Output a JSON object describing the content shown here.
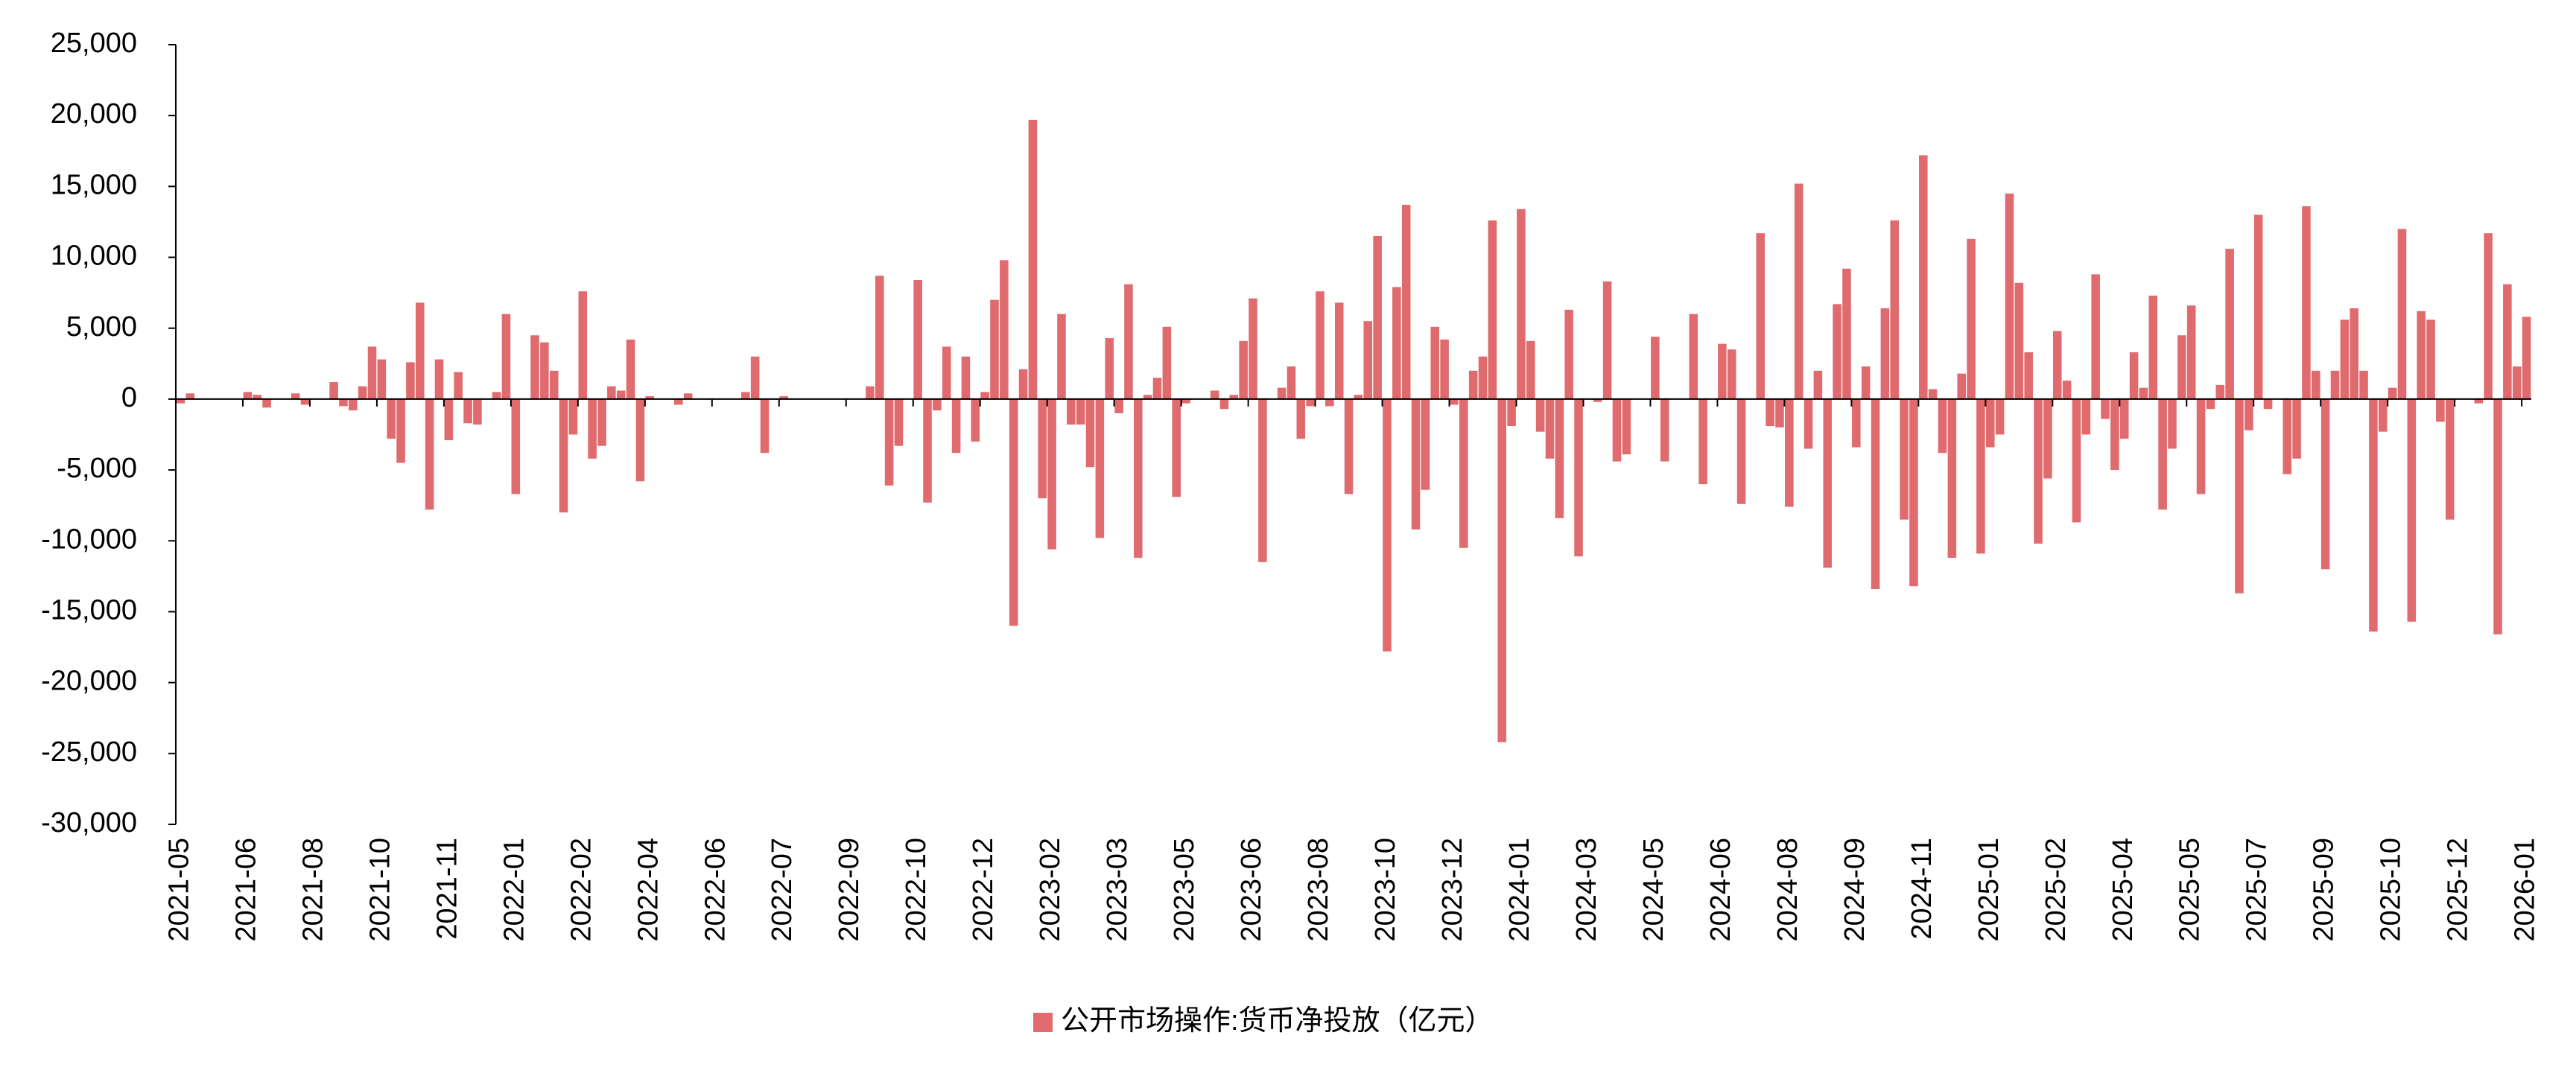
{
  "chart_data": {
    "type": "bar",
    "categories": [
      "2021-05",
      null,
      null,
      null,
      null,
      null,
      null,
      "2021-06",
      null,
      null,
      null,
      null,
      null,
      null,
      "2021-08",
      null,
      null,
      null,
      null,
      null,
      null,
      "2021-10",
      null,
      null,
      null,
      null,
      null,
      null,
      "2021-11",
      null,
      null,
      null,
      null,
      null,
      null,
      "2022-01",
      null,
      null,
      null,
      null,
      null,
      null,
      "2022-02",
      null,
      null,
      null,
      null,
      null,
      null,
      "2022-04",
      null,
      null,
      null,
      null,
      null,
      null,
      "2022-06",
      null,
      null,
      null,
      null,
      null,
      null,
      "2022-07",
      null,
      null,
      null,
      null,
      null,
      null,
      "2022-09",
      null,
      null,
      null,
      null,
      null,
      null,
      "2022-10",
      null,
      null,
      null,
      null,
      null,
      null,
      "2022-12",
      null,
      null,
      null,
      null,
      null,
      null,
      "2023-02",
      null,
      null,
      null,
      null,
      null,
      null,
      "2023-03",
      null,
      null,
      null,
      null,
      null,
      null,
      "2023-05",
      null,
      null,
      null,
      null,
      null,
      null,
      "2023-06",
      null,
      null,
      null,
      null,
      null,
      null,
      "2023-08",
      null,
      null,
      null,
      null,
      null,
      null,
      "2023-10",
      null,
      null,
      null,
      null,
      null,
      null,
      "2023-12",
      null,
      null,
      null,
      null,
      null,
      null,
      "2024-01",
      null,
      null,
      null,
      null,
      null,
      null,
      "2024-03",
      null,
      null,
      null,
      null,
      null,
      null,
      "2024-05",
      null,
      null,
      null,
      null,
      null,
      null,
      "2024-06",
      null,
      null,
      null,
      null,
      null,
      null,
      "2024-08",
      null,
      null,
      null,
      null,
      null,
      null,
      "2024-09",
      null,
      null,
      null,
      null,
      null,
      null,
      "2024-11",
      null,
      null,
      null,
      null,
      null,
      null,
      "2025-01",
      null,
      null,
      null,
      null,
      null,
      null,
      "2025-02",
      null,
      null,
      null,
      null,
      null,
      null,
      "2025-04",
      null,
      null,
      null,
      null,
      null,
      null,
      "2025-05",
      null,
      null,
      null,
      null,
      null,
      null,
      "2025-07",
      null,
      null,
      null,
      null,
      null,
      null,
      "2025-09",
      null,
      null,
      null,
      null,
      null,
      null,
      "2025-10",
      null,
      null,
      null,
      null,
      null,
      null,
      "2025-12",
      null,
      null,
      null,
      null,
      null,
      null,
      "2026-01"
    ],
    "series": [
      {
        "name": "公开市场操作:货币净投放（亿元）",
        "color": "#e06b6e",
        "values": [
          -300,
          400,
          null,
          null,
          null,
          null,
          null,
          500,
          300,
          -600,
          null,
          null,
          400,
          -400,
          null,
          null,
          1200,
          -500,
          -800,
          900,
          3700,
          2800,
          -2800,
          -4500,
          2600,
          6800,
          -7800,
          2800,
          -2900,
          1900,
          -1700,
          -1800,
          null,
          500,
          6000,
          -6700,
          null,
          4500,
          4000,
          2000,
          -8000,
          -2500,
          7600,
          -4200,
          -3300,
          900,
          600,
          4200,
          -5800,
          200,
          null,
          null,
          -400,
          400,
          null,
          null,
          null,
          null,
          null,
          500,
          3000,
          -3800,
          null,
          200,
          null,
          null,
          null,
          null,
          null,
          null,
          null,
          null,
          900,
          8700,
          -6100,
          -3300,
          null,
          8400,
          -7300,
          -800,
          3700,
          -3800,
          3000,
          -3000,
          500,
          7000,
          9800,
          -16000,
          2100,
          19700,
          -7000,
          -10600,
          6000,
          -1800,
          -1800,
          -4800,
          -9800,
          4300,
          -1000,
          8100,
          -11200,
          300,
          1500,
          5100,
          -6900,
          -300,
          null,
          null,
          600,
          -700,
          300,
          4100,
          7100,
          -11500,
          null,
          800,
          2300,
          -2800,
          -500,
          7600,
          -500,
          6800,
          -6700,
          300,
          5500,
          11500,
          -17800,
          7900,
          13700,
          -9200,
          -6400,
          5100,
          4200,
          -400,
          -10500,
          2000,
          3000,
          12600,
          -24200,
          -1900,
          13400,
          4100,
          -2300,
          -4200,
          -8400,
          6300,
          -11100,
          null,
          -200,
          8300,
          -4400,
          -3900,
          null,
          null,
          4400,
          -4400,
          null,
          null,
          6000,
          -6000,
          null,
          3900,
          3500,
          -7400,
          null,
          11700,
          -1900,
          -2000,
          -7600,
          15200,
          -3500,
          2000,
          -11900,
          6700,
          9200,
          -3400,
          2300,
          -13400,
          6400,
          12600,
          -8500,
          -13200,
          17200,
          700,
          -3800,
          -11200,
          1800,
          11300,
          -10900,
          -3400,
          -2500,
          14500,
          8200,
          3300,
          -10200,
          -5600,
          4800,
          1300,
          -8700,
          -2500,
          8800,
          -1400,
          -5000,
          -2800,
          3300,
          800,
          7300,
          -7800,
          -3500,
          4500,
          6600,
          -6700,
          -700,
          1000,
          10600,
          -13700,
          -2200,
          13000,
          -700,
          null,
          -5300,
          -4200,
          13600,
          2000,
          -12000,
          2000,
          5600,
          6400,
          2000,
          -16400,
          -2300,
          800,
          12000,
          -15700,
          6200,
          5600,
          -1600,
          -8500,
          null,
          null,
          -300,
          11700,
          -16600,
          8100,
          2300,
          5800
        ]
      }
    ],
    "ylim": [
      -30000,
      25000
    ],
    "yticks": [
      {
        "value": -30000,
        "label": "-30,000"
      },
      {
        "value": -25000,
        "label": "-25,000"
      },
      {
        "value": -20000,
        "label": "-20,000"
      },
      {
        "value": -15000,
        "label": "-15,000"
      },
      {
        "value": -10000,
        "label": "-10,000"
      },
      {
        "value": -5000,
        "label": "-5,000"
      },
      0,
      {
        "value": 5000,
        "label": "5,000"
      },
      {
        "value": 10000,
        "label": "10,000"
      },
      {
        "value": 15000,
        "label": "15,000"
      },
      {
        "value": 20000,
        "label": "20,000"
      },
      {
        "value": 25000,
        "label": "25,000"
      }
    ],
    "grid": false,
    "legend": "bottom"
  }
}
